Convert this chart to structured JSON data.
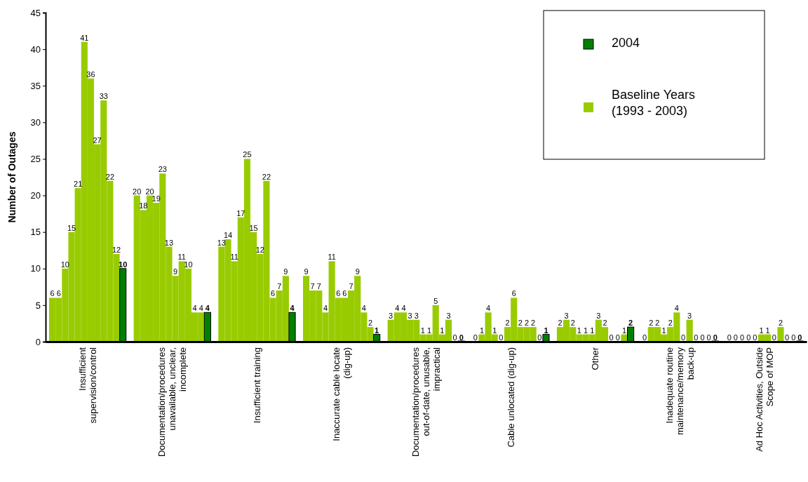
{
  "chart_data": {
    "type": "bar",
    "ylabel": "Number of Outages",
    "categories": [
      "Insufficient\nsupervision/control",
      "Documentation/procedures\nunavailable, unclear,\nincomplete",
      "Insufficient training",
      "Inaccurate cable locate\n(dig-up)",
      "Documentation/procedures\nout-of-date, unusable,\nimpractical",
      "Cable unlocated (dig-up)",
      "Other",
      "Inadequate routine\nmaintenance/memory\nback-up",
      "Ad Hoc Activities, Outside\nScope of MOP"
    ],
    "series": [
      {
        "name": "Baseline Years (1993 - 2003)",
        "color": "#99cc00",
        "values": [
          6,
          20,
          13,
          9,
          3,
          0,
          2,
          0,
          0
        ]
      },
      {
        "color": "#99cc00",
        "values": [
          6,
          18,
          14,
          7,
          4,
          1,
          3,
          2,
          0
        ]
      },
      {
        "color": "#99cc00",
        "values": [
          10,
          20,
          11,
          7,
          4,
          4,
          2,
          2,
          0
        ]
      },
      {
        "color": "#99cc00",
        "values": [
          15,
          19,
          17,
          4,
          3,
          1,
          1,
          1,
          0
        ]
      },
      {
        "color": "#99cc00",
        "values": [
          21,
          23,
          25,
          11,
          3,
          0,
          1,
          2,
          0
        ]
      },
      {
        "color": "#99cc00",
        "values": [
          41,
          13,
          15,
          6,
          1,
          2,
          1,
          4,
          1
        ]
      },
      {
        "color": "#99cc00",
        "values": [
          36,
          9,
          12,
          6,
          1,
          6,
          3,
          0,
          1
        ]
      },
      {
        "color": "#99cc00",
        "values": [
          27,
          11,
          22,
          7,
          5,
          2,
          2,
          3,
          0
        ]
      },
      {
        "color": "#99cc00",
        "values": [
          33,
          10,
          6,
          9,
          1,
          2,
          0,
          0,
          2
        ]
      },
      {
        "color": "#99cc00",
        "values": [
          22,
          4,
          7,
          4,
          3,
          2,
          0,
          0,
          0
        ]
      },
      {
        "color": "#99cc00",
        "values": [
          12,
          4,
          9,
          2,
          0,
          0,
          1,
          0,
          0
        ]
      },
      {
        "name": "2004",
        "color": "#008000",
        "values": [
          10,
          4,
          4,
          1,
          0,
          1,
          2,
          0,
          0
        ]
      }
    ],
    "ylim": [
      0,
      45
    ],
    "yticks": [
      0,
      5,
      10,
      15,
      20,
      25,
      30,
      35,
      40,
      45
    ],
    "grid": false,
    "legend": "top right",
    "data_labels": true
  }
}
